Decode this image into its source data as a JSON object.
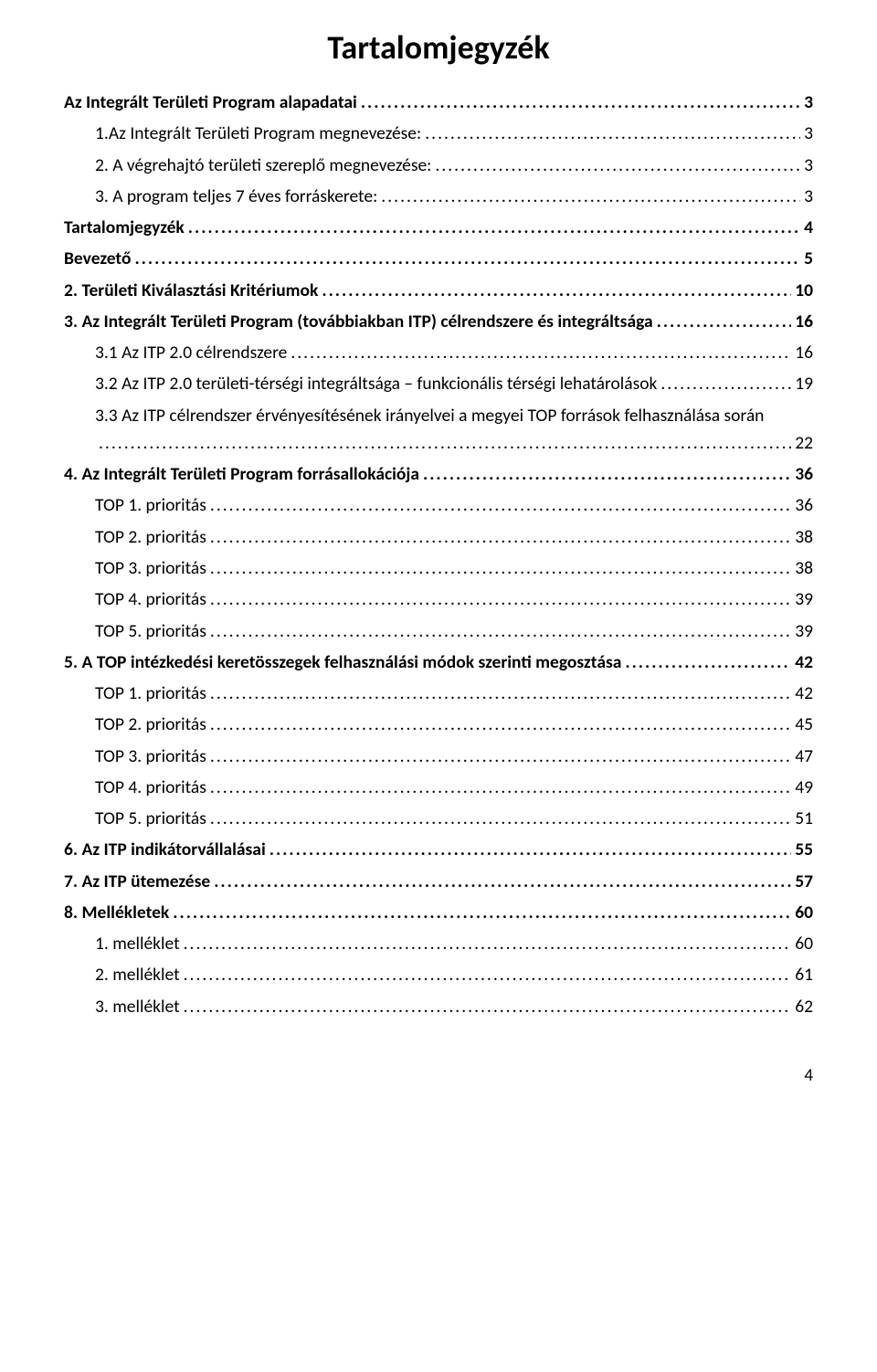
{
  "title": "Tartalomjegyzék",
  "pageNumber": "4",
  "toc": [
    {
      "level": 0,
      "label": "Az Integrált Területi Program alapadatai",
      "page": "3"
    },
    {
      "level": 1,
      "label": "1.Az Integrált Területi Program megnevezése:",
      "page": "3"
    },
    {
      "level": 1,
      "label": "2. A végrehajtó területi szereplő megnevezése:",
      "page": "3"
    },
    {
      "level": 1,
      "label": "3. A program teljes 7 éves forráskerete:",
      "page": "3"
    },
    {
      "level": 0,
      "label": "Tartalomjegyzék",
      "page": "4"
    },
    {
      "level": 0,
      "label": "Bevezető",
      "page": "5"
    },
    {
      "level": 0,
      "label": "2. Területi Kiválasztási Kritériumok",
      "page": "10"
    },
    {
      "level": 0,
      "label": "3. Az Integrált Területi Program (továbbiakban ITP) célrendszere és integráltsága",
      "page": "16"
    },
    {
      "level": 1,
      "label": "3.1 Az ITP 2.0 célrendszere",
      "page": "16"
    },
    {
      "level": 1,
      "label": "3.2 Az ITP 2.0 területi-térségi integráltsága – funkcionális térségi lehatárolások",
      "page": "19"
    },
    {
      "level": 1,
      "label": "3.3 Az ITP célrendszer érvényesítésének irányelvei a megyei TOP források felhasználása során",
      "page": "22",
      "multiline": true
    },
    {
      "level": 0,
      "label": "4. Az Integrált Területi Program forrásallokációja",
      "page": "36"
    },
    {
      "level": 1,
      "label": "TOP 1. prioritás",
      "page": "36"
    },
    {
      "level": 1,
      "label": "TOP 2. prioritás",
      "page": "38"
    },
    {
      "level": 1,
      "label": "TOP 3. prioritás",
      "page": "38"
    },
    {
      "level": 1,
      "label": "TOP 4. prioritás",
      "page": "39"
    },
    {
      "level": 1,
      "label": "TOP 5. prioritás",
      "page": "39"
    },
    {
      "level": 0,
      "label": "5. A TOP intézkedési keretösszegek felhasználási módok szerinti megosztása",
      "page": "42"
    },
    {
      "level": 1,
      "label": "TOP 1. prioritás",
      "page": "42"
    },
    {
      "level": 1,
      "label": "TOP 2. prioritás",
      "page": "45"
    },
    {
      "level": 1,
      "label": "TOP 3. prioritás",
      "page": "47"
    },
    {
      "level": 1,
      "label": "TOP 4. prioritás",
      "page": "49"
    },
    {
      "level": 1,
      "label": "TOP 5. prioritás",
      "page": "51"
    },
    {
      "level": 0,
      "label": "6. Az ITP indikátorvállalásai",
      "page": "55"
    },
    {
      "level": 0,
      "label": "7. Az ITP ütemezése",
      "page": "57"
    },
    {
      "level": 0,
      "label": "8. Mellékletek",
      "page": "60"
    },
    {
      "level": 1,
      "label": "1. melléklet",
      "page": "60"
    },
    {
      "level": 1,
      "label": "2. melléklet",
      "page": "61"
    },
    {
      "level": 1,
      "label": "3. melléklet",
      "page": "62"
    }
  ]
}
